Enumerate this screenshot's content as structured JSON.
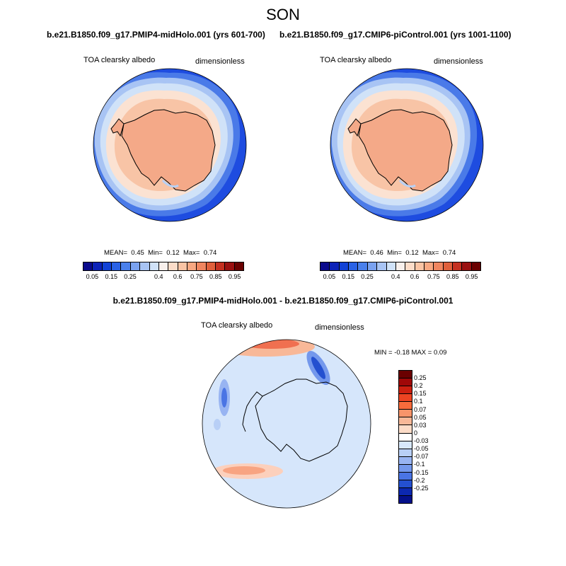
{
  "figure": {
    "season": "SON",
    "panel_left": {
      "title": "b.e21.B1850.f09_g17.PMIP4-midHolo.001 (yrs 601-700)",
      "variable": "TOA clearsky albedo",
      "units": "dimensionless",
      "mean_label": "MEAN=",
      "mean": "0.45",
      "min_label": "Min=",
      "min": "0.12",
      "max_label": "Max=",
      "max": "0.74"
    },
    "panel_right": {
      "title": "b.e21.B1850.f09_g17.CMIP6-piControl.001 (yrs 1001-1100)",
      "variable": "TOA clearsky albedo",
      "units": "dimensionless",
      "mean_label": "MEAN=",
      "mean": "0.46",
      "min_label": "Min=",
      "min": "0.12",
      "max_label": "Max=",
      "max": "0.74"
    },
    "panel_diff": {
      "title": "b.e21.B1850.f09_g17.PMIP4-midHolo.001 - b.e21.B1850.f09_g17.CMIP6-piControl.001",
      "variable": "TOA clearsky albedo",
      "units": "dimensionless",
      "minmax_text": "MIN =  -0.18 MAX =   0.09"
    }
  },
  "colorbars": {
    "albedo": {
      "colors": [
        "#0a0a8c",
        "#0c22b8",
        "#1242d6",
        "#2a62e6",
        "#4a80ec",
        "#7aa2f0",
        "#a8c4f4",
        "#d0e2f8",
        "#f8f0ec",
        "#fcdcc8",
        "#fac4a4",
        "#f8a882",
        "#f08660",
        "#e0603c",
        "#c43020",
        "#9a1010",
        "#6a0000"
      ],
      "tick_labels": [
        "0.05",
        "0.15",
        "0.25",
        "0.4",
        "0.6",
        "0.75",
        "0.85",
        "0.95"
      ]
    },
    "difference": {
      "colors": [
        "#6a0000",
        "#a00808",
        "#cc2010",
        "#ec4422",
        "#f86c3c",
        "#f8946a",
        "#f8b898",
        "#fcdcc8",
        "#ffffff",
        "#d8e8fc",
        "#b8cff6",
        "#98b4f2",
        "#7498ec",
        "#4a74e4",
        "#2450d0",
        "#0c28b0",
        "#04108a"
      ],
      "tick_labels": [
        "0.25",
        "0.2",
        "0.15",
        "0.1",
        "0.07",
        "0.05",
        "0.03",
        "0",
        "-0.03",
        "-0.05",
        "-0.07",
        "-0.1",
        "-0.15",
        "-0.2",
        "-0.25"
      ]
    }
  },
  "map_colors": {
    "ocean_open": "#1e4ce0",
    "ocean_mid": "#4a7ae8",
    "ocean_light": "#a8c4f4",
    "ocean_pale": "#d0e2f8",
    "ice_pale": "#fbe2d2",
    "ice_mid": "#f8c4a6",
    "continent": "#f4a988",
    "diff_background": "#d6e6fb"
  }
}
